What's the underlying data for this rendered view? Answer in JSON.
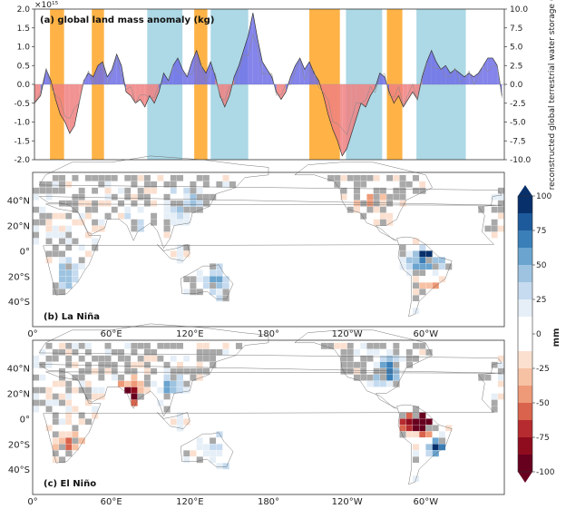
{
  "chart_data": [
    {
      "type": "area",
      "title": "(a) global land mass anomaly (kg)",
      "y_multiplier_label": "×10¹⁵",
      "ylabel_right": "reconstructed global terrestrial water storage (mm)",
      "ylim": [
        -2.0,
        2.0
      ],
      "ylim_right": [
        -10.0,
        10.0
      ],
      "yticks": [
        "2.0",
        "1.5",
        "1.0",
        "0.5",
        "0.0",
        "-0.5",
        "-1.0",
        "-1.5",
        "-2.0"
      ],
      "yticks_right": [
        "10.0",
        "7.5",
        "5.0",
        "2.5",
        "0.0",
        "-2.5",
        "-5.0",
        "-7.5",
        "-10.0"
      ],
      "x_range": [
        0,
        100
      ],
      "series": [
        {
          "values": [
            [
              0,
              -0.5
            ],
            [
              1.3,
              -0.3
            ],
            [
              2.5,
              0.4
            ],
            [
              3.5,
              0.1
            ],
            [
              4.5,
              -0.4
            ],
            [
              5.5,
              -0.8
            ],
            [
              6.5,
              -1.0
            ],
            [
              7.5,
              -1.3
            ],
            [
              8.5,
              -1.1
            ],
            [
              9.5,
              -0.5
            ],
            [
              10.5,
              0.1
            ],
            [
              11.5,
              0.3
            ],
            [
              12.5,
              0.2
            ],
            [
              13.5,
              0.5
            ],
            [
              14.5,
              0.6
            ],
            [
              15.5,
              0.2
            ],
            [
              16.5,
              0.4
            ],
            [
              17.5,
              0.8
            ],
            [
              18.5,
              0.5
            ],
            [
              19.5,
              -0.2
            ],
            [
              20.5,
              -0.3
            ],
            [
              21.5,
              -0.5
            ],
            [
              22.5,
              -0.4
            ],
            [
              23.5,
              -0.6
            ],
            [
              24.5,
              -0.3
            ],
            [
              25.5,
              -0.5
            ],
            [
              26.5,
              -0.2
            ],
            [
              27.5,
              0.3
            ],
            [
              28.5,
              0.1
            ],
            [
              29.5,
              0.5
            ],
            [
              30.5,
              0.7
            ],
            [
              31.5,
              0.4
            ],
            [
              32.5,
              0.2
            ],
            [
              33.5,
              0.6
            ],
            [
              34.5,
              0.9
            ],
            [
              35.5,
              0.5
            ],
            [
              36.5,
              0.3
            ],
            [
              37.5,
              0.6
            ],
            [
              38.5,
              0.2
            ],
            [
              39.5,
              -0.3
            ],
            [
              40.5,
              -0.6
            ],
            [
              41.5,
              -0.3
            ],
            [
              42.5,
              0.2
            ],
            [
              43.5,
              0.5
            ],
            [
              44.5,
              0.9
            ],
            [
              45.5,
              1.3
            ],
            [
              46.5,
              1.9
            ],
            [
              47.5,
              1.2
            ],
            [
              48.5,
              0.6
            ],
            [
              49.5,
              0.4
            ],
            [
              50.5,
              0.2
            ],
            [
              51.5,
              -0.2
            ],
            [
              52.5,
              -0.4
            ],
            [
              53.5,
              -0.2
            ],
            [
              54.5,
              0.2
            ],
            [
              55.5,
              0.5
            ],
            [
              56.5,
              0.7
            ],
            [
              57.5,
              0.4
            ],
            [
              58.5,
              0.6
            ],
            [
              59.5,
              0.3
            ],
            [
              60.5,
              0.1
            ],
            [
              61.5,
              -0.3
            ],
            [
              62.5,
              -0.8
            ],
            [
              63.5,
              -1.2
            ],
            [
              64.5,
              -1.5
            ],
            [
              65.5,
              -1.9
            ],
            [
              66.5,
              -1.7
            ],
            [
              67.5,
              -1.3
            ],
            [
              68.5,
              -0.9
            ],
            [
              69.5,
              -0.5
            ],
            [
              70.5,
              -0.6
            ],
            [
              71.5,
              -0.3
            ],
            [
              72.5,
              -0.1
            ],
            [
              73.5,
              0.3
            ],
            [
              74.5,
              0.2
            ],
            [
              75.5,
              -0.2
            ],
            [
              76.5,
              -0.5
            ],
            [
              77.5,
              -0.3
            ],
            [
              78.5,
              -0.6
            ],
            [
              79.5,
              -0.4
            ],
            [
              80.5,
              -0.2
            ],
            [
              81.5,
              -0.4
            ],
            [
              82.5,
              0.2
            ],
            [
              83.5,
              0.6
            ],
            [
              84.5,
              0.9
            ],
            [
              85.5,
              0.6
            ],
            [
              86.5,
              0.4
            ],
            [
              87.5,
              0.5
            ],
            [
              88.5,
              0.3
            ],
            [
              89.5,
              0.4
            ],
            [
              90.5,
              0.3
            ],
            [
              91.5,
              0.2
            ],
            [
              92.5,
              0.3
            ],
            [
              93.5,
              0.2
            ],
            [
              94.5,
              0.3
            ],
            [
              95.5,
              0.5
            ],
            [
              96.5,
              0.7
            ],
            [
              97.5,
              0.7
            ],
            [
              98.5,
              0.5
            ],
            [
              99.5,
              -0.3
            ]
          ]
        }
      ],
      "la_nina_color": "#add8e6",
      "el_nino_color": "#ffb347",
      "positive_color": "#6f6fe6",
      "negative_color": "#f08080",
      "el_nino_periods": [
        [
          3.3,
          6.3
        ],
        [
          12.2,
          14.8
        ],
        [
          34.0,
          36.8
        ],
        [
          58.5,
          65.0
        ],
        [
          75.0,
          78.3
        ]
      ],
      "la_nina_periods": [
        [
          24.0,
          31.5
        ],
        [
          37.5,
          45.5
        ],
        [
          66.3,
          74.0
        ],
        [
          81.3,
          91.8
        ]
      ]
    },
    {
      "type": "heatmap",
      "title": "(b) La Niña",
      "x_tick_labels": [
        "0°",
        "60°E",
        "120°E",
        "180°",
        "120°W",
        "60°W"
      ],
      "y_tick_labels": [
        "40°N",
        "20°N",
        "0°",
        "20°S",
        "40°S"
      ]
    },
    {
      "type": "heatmap",
      "title": "(c) El Niño",
      "x_tick_labels": [
        "0°",
        "60°E",
        "120°E",
        "180°",
        "120°W",
        "60°W"
      ],
      "y_tick_labels": [
        "40°N",
        "20°N",
        "0°",
        "20°S",
        "40°S"
      ]
    }
  ],
  "colorbar": {
    "label": "mm",
    "range": [
      -100,
      100
    ],
    "ticks": [
      "100",
      "75",
      "50",
      "25",
      "0",
      "-25",
      "-50",
      "-75",
      "-100"
    ],
    "colors": [
      "#08306b",
      "#1c5a9c",
      "#3a7fb8",
      "#6aa4cf",
      "#9ec3e0",
      "#c6dbef",
      "#e6eff7",
      "#ffffff",
      "#ffffff",
      "#fbe0d0",
      "#f7c1a4",
      "#ee9a78",
      "#d9634c",
      "#b52b2f",
      "#8f0c1f",
      "#67001f"
    ],
    "missing_color": "#a9a9a9"
  }
}
